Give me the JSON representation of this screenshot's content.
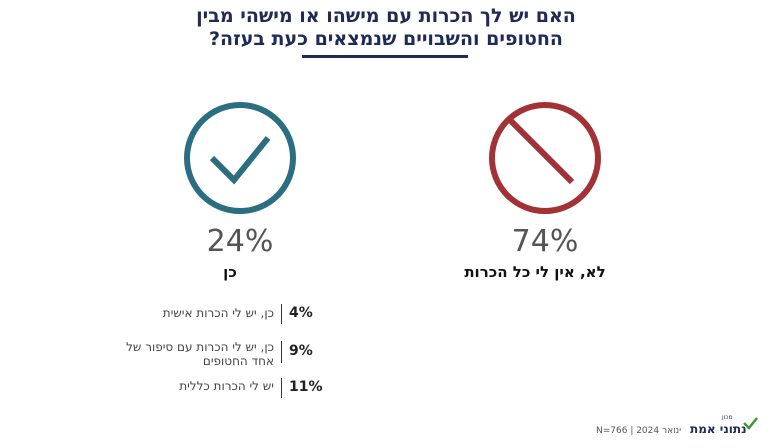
{
  "title": {
    "line1": "האם יש לך הכרות עם מישהו או מישהי מבין",
    "line2": "החטופים והשבויים שנמצאים כעת בעזה?"
  },
  "options": [
    {
      "percent": "74%",
      "label": "לא, אין לי כל הכרות"
    },
    {
      "percent": "24%",
      "label": "כן"
    }
  ],
  "breakdown": [
    {
      "percent": "4%",
      "label": "כן, יש לי הכרות אישית"
    },
    {
      "percent": "9%",
      "label": "כן, יש לי הכרות עם סיפור של אחד החטופים"
    },
    {
      "percent": "11%",
      "label": "יש לי הכרות כללית"
    }
  ],
  "footer": {
    "source": "N=766 | 2024 ינואר",
    "logo": "נתוני אמת",
    "logo_prefix": "מכון"
  }
}
